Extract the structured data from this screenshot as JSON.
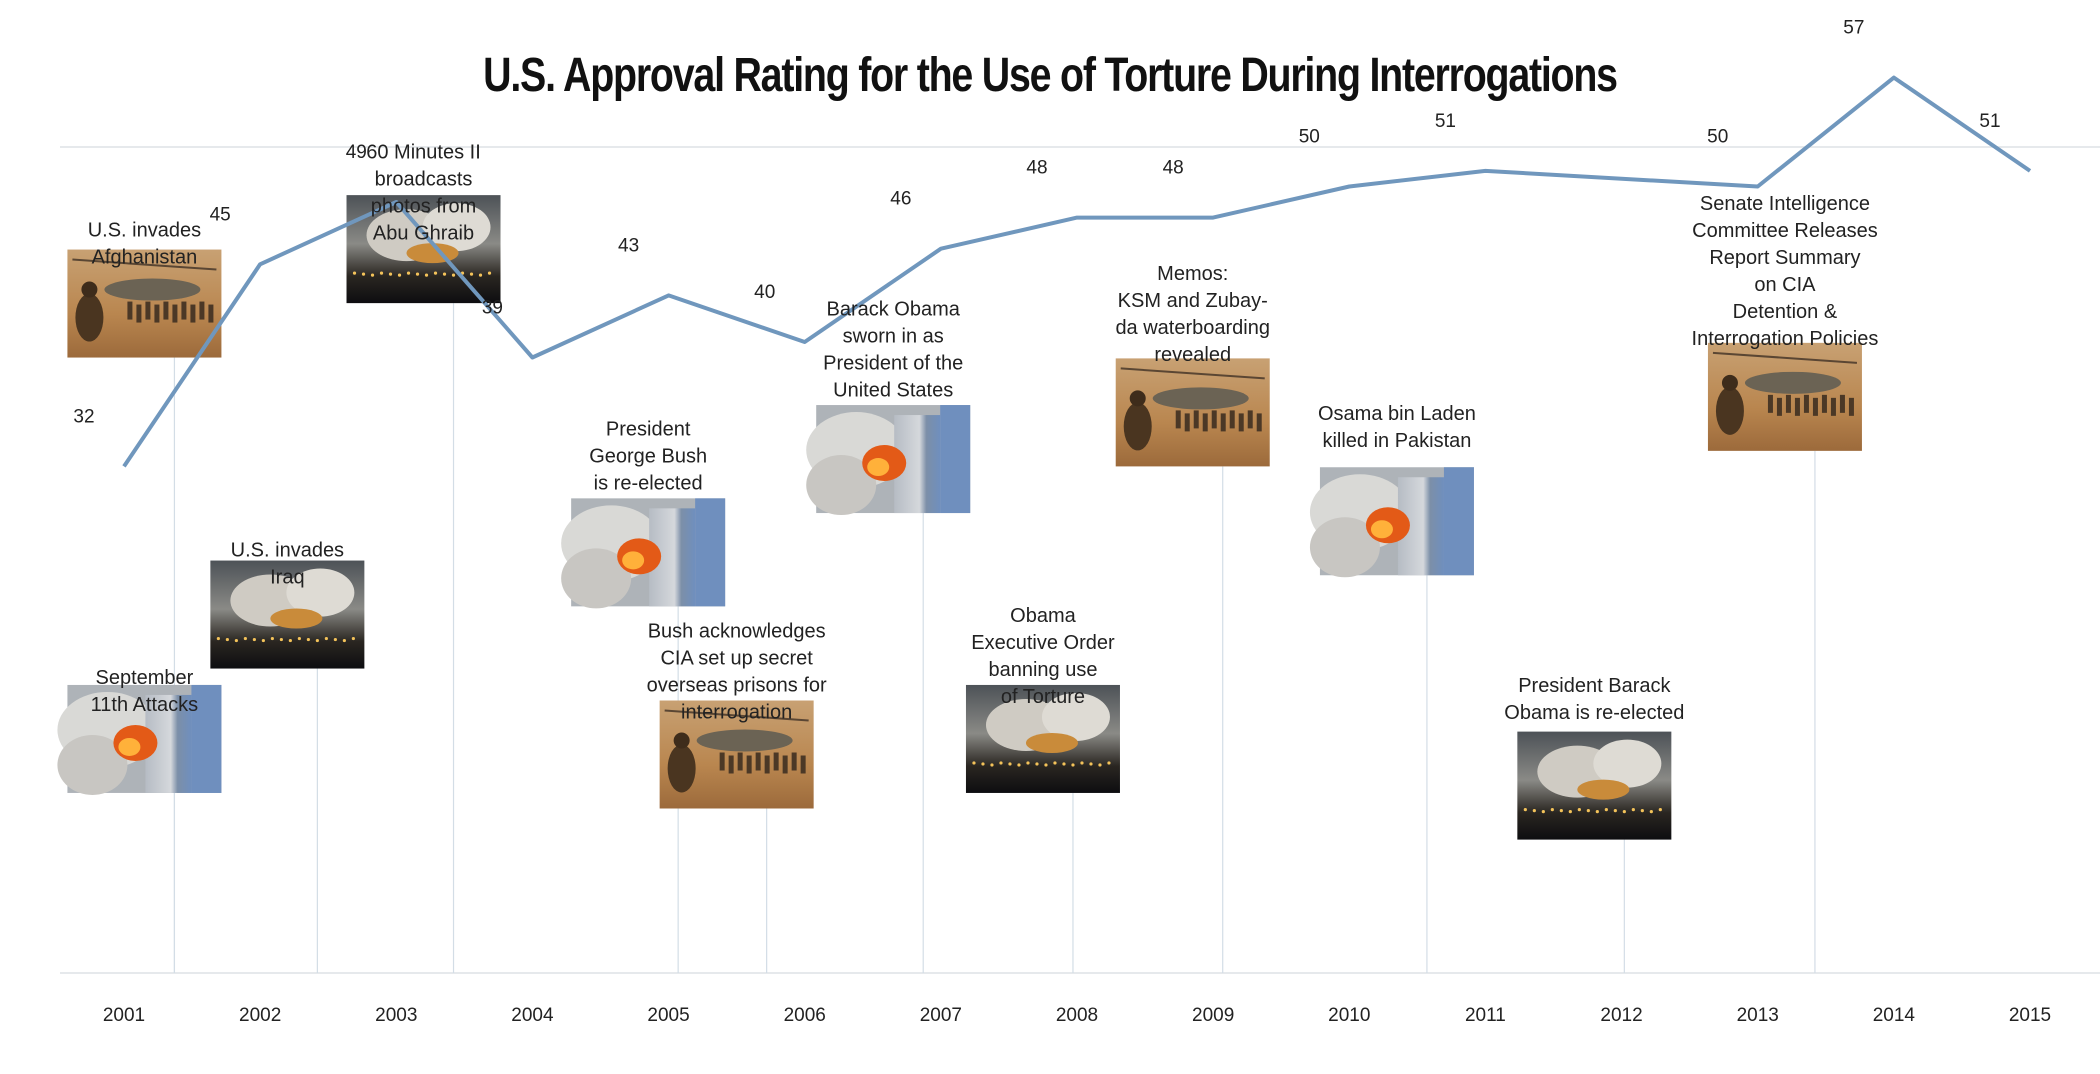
{
  "chart_data": {
    "type": "line",
    "title": "U.S. Approval Rating for the Use of Torture During Interrogations",
    "x": [
      2001,
      2002,
      2003,
      2004,
      2005,
      2006,
      2007,
      2008,
      2009,
      2010,
      2011,
      2013,
      2014,
      2015
    ],
    "series": [
      {
        "values": [
          32,
          45,
          49,
          39,
          43,
          40,
          46,
          48,
          48,
          50,
          51,
          50,
          57,
          51
        ]
      }
    ],
    "xticks": [
      "2001",
      "2002",
      "2003",
      "2004",
      "2005",
      "2006",
      "2007",
      "2008",
      "2009",
      "2010",
      "2011",
      "2012",
      "2013",
      "2014",
      "2015"
    ],
    "xlim": [
      2001,
      2015
    ],
    "line_color": "#7097bd",
    "grid": false,
    "annotations": [
      {
        "year": 2001.15,
        "lines": [
          "September",
          "11th Attacks"
        ],
        "photo": "tower-fire",
        "text_above": true,
        "label_value": 18,
        "photo_value": 11
      },
      {
        "year": 2001.15,
        "lines": [
          "U.S. invades",
          "Afghanistan"
        ],
        "photo": "helicopter-troops",
        "text_above": true,
        "label_value": 46.8,
        "photo_value": 39
      },
      {
        "year": 2002.2,
        "lines": [
          "U.S. invades",
          "Iraq"
        ],
        "photo": "burning-city",
        "text_above": true,
        "label_value": 26.2,
        "photo_value": 19
      },
      {
        "year": 2003.2,
        "lines": [
          "60 Minutes II",
          "broadcasts",
          "photos from",
          "Abu Ghraib"
        ],
        "photo": "burning-city",
        "text_above": true,
        "label_value": 51.8,
        "photo_value": 42.5
      },
      {
        "year": 2004.85,
        "lines": [
          "President",
          "George Bush",
          "is re-elected"
        ],
        "photo": "tower-fire",
        "text_above": true,
        "label_value": 34,
        "photo_value": 23
      },
      {
        "year": 2005.5,
        "lines": [
          "Bush acknowledges",
          "CIA set up secret",
          "overseas prisons for",
          "interrogation"
        ],
        "photo": "helicopter-troops",
        "text_above": true,
        "label_value": 21,
        "photo_value": 10
      },
      {
        "year": 2006.65,
        "lines": [
          "Barack Obama",
          "sworn in as",
          "President of the",
          "United States"
        ],
        "photo": "tower-fire",
        "text_above": true,
        "label_value": 41.7,
        "photo_value": 29
      },
      {
        "year": 2007.75,
        "lines": [
          "Obama",
          "Executive Order",
          "banning use",
          "of Torture"
        ],
        "photo": "burning-city",
        "text_above": true,
        "label_value": 22,
        "photo_value": 11
      },
      {
        "year": 2008.85,
        "lines": [
          "Memos:",
          "KSM and Zubay-",
          "da waterboarding",
          "revealed"
        ],
        "photo": "helicopter-troops",
        "text_above": true,
        "label_value": 44,
        "photo_value": 32
      },
      {
        "year": 2010.35,
        "lines": [
          "Osama bin Laden",
          "killed in Pakistan"
        ],
        "photo": "tower-fire",
        "text_above": true,
        "label_value": 35,
        "photo_value": 25
      },
      {
        "year": 2011.8,
        "lines": [
          "President Barack",
          "Obama is re-elected"
        ],
        "photo": "burning-city",
        "text_above": true,
        "label_value": 17.5,
        "photo_value": 8
      },
      {
        "year": 2013.2,
        "lines": [
          "Senate Intelligence",
          "Committee Releases",
          "Report Summary",
          "on CIA",
          "Detention &",
          "Interrogation Policies"
        ],
        "photo": "helicopter-troops",
        "text_above": true,
        "label_value": 48.5,
        "photo_value": 33
      }
    ]
  }
}
